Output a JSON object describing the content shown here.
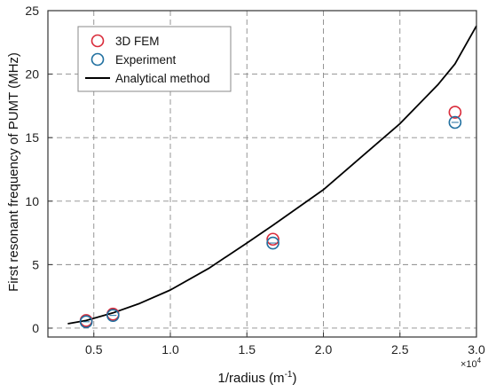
{
  "chart_data": {
    "type": "scatter",
    "xlabel": "1/radius (m",
    "xlabel_sup": "-1",
    "xlabel_end": ")",
    "ylabel": "First resonant frequency of PUMT (MHz)",
    "x_multiplier": "×10",
    "x_multiplier_sup": "4",
    "xlim": [
      0.2,
      3.0
    ],
    "ylim": [
      -0.7,
      25
    ],
    "xticks": [
      0.5,
      1.0,
      1.5,
      2.0,
      2.5,
      3.0
    ],
    "xtick_labels": [
      "0.5",
      "1.0",
      "1.5",
      "2.0",
      "2.5",
      "3.0"
    ],
    "yticks": [
      0,
      5,
      10,
      15,
      20,
      25
    ],
    "ytick_labels": [
      "0",
      "5",
      "10",
      "15",
      "20",
      "25"
    ],
    "grid": true,
    "legend_position": "top-left",
    "series": [
      {
        "name": "3D FEM",
        "kind": "marker",
        "color": "#d92b3a",
        "x": [
          0.45,
          0.625,
          1.67,
          2.86
        ],
        "y": [
          0.6,
          1.1,
          7.0,
          17.0
        ]
      },
      {
        "name": "Experiment",
        "kind": "marker",
        "color": "#1f6f9f",
        "x": [
          0.45,
          0.625,
          1.67,
          2.86
        ],
        "y": [
          0.5,
          1.0,
          6.7,
          16.2
        ]
      },
      {
        "name": "Analytical method",
        "kind": "line",
        "color": "#000000",
        "x": [
          0.33,
          0.45,
          0.625,
          0.8,
          1.0,
          1.25,
          1.5,
          1.67,
          2.0,
          2.25,
          2.5,
          2.75,
          2.86,
          3.0
        ],
        "y": [
          0.35,
          0.6,
          1.2,
          1.95,
          3.0,
          4.7,
          6.7,
          8.1,
          10.9,
          13.5,
          16.1,
          19.2,
          20.8,
          23.8
        ]
      }
    ]
  }
}
